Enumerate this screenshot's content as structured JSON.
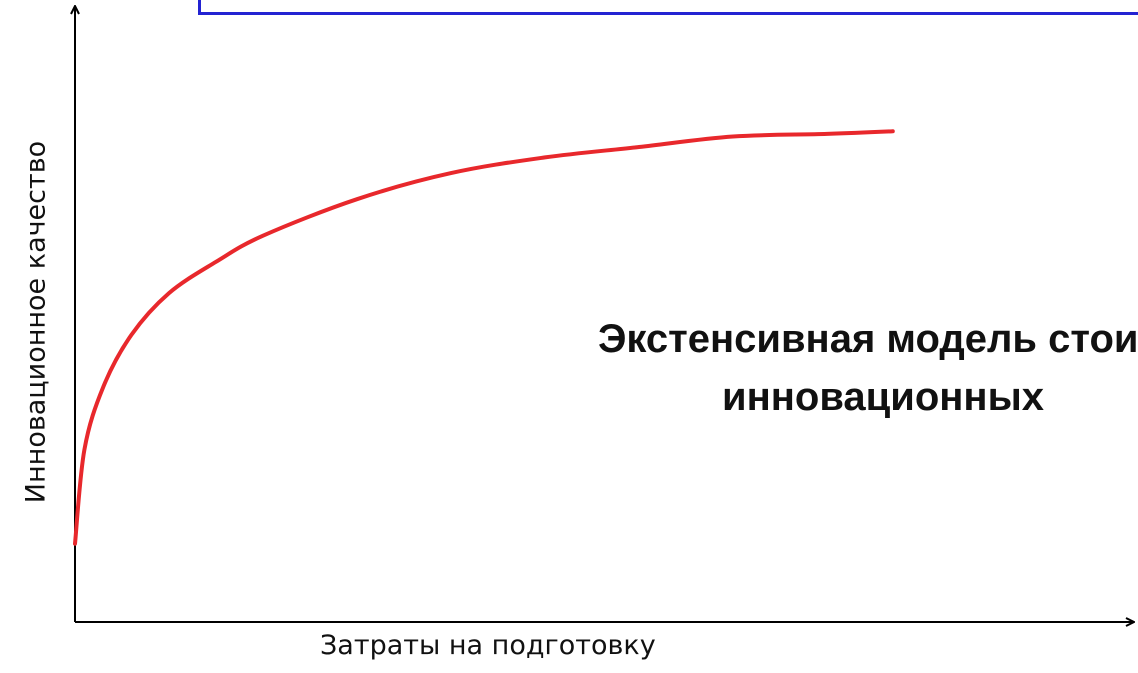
{
  "chart_data": {
    "type": "line",
    "title": "",
    "xlabel": "Затраты на подготовку",
    "ylabel": "Инновационное качество",
    "annotation": [
      "Экстенсивная модель стоим",
      "инновационных"
    ],
    "xlim": [
      0,
      1
    ],
    "ylim": [
      0,
      1
    ],
    "grid": false,
    "axis_color": "#000000",
    "series": [
      {
        "color": "#e8282c",
        "x": [
          0,
          0.01,
          0.03,
          0.06,
          0.1,
          0.15,
          0.2,
          0.3,
          0.4,
          0.5,
          0.6,
          0.7,
          0.8,
          0.87
        ],
        "y": [
          0.15,
          0.33,
          0.45,
          0.55,
          0.63,
          0.69,
          0.74,
          0.81,
          0.86,
          0.89,
          0.91,
          0.93,
          0.935,
          0.94
        ]
      }
    ]
  }
}
